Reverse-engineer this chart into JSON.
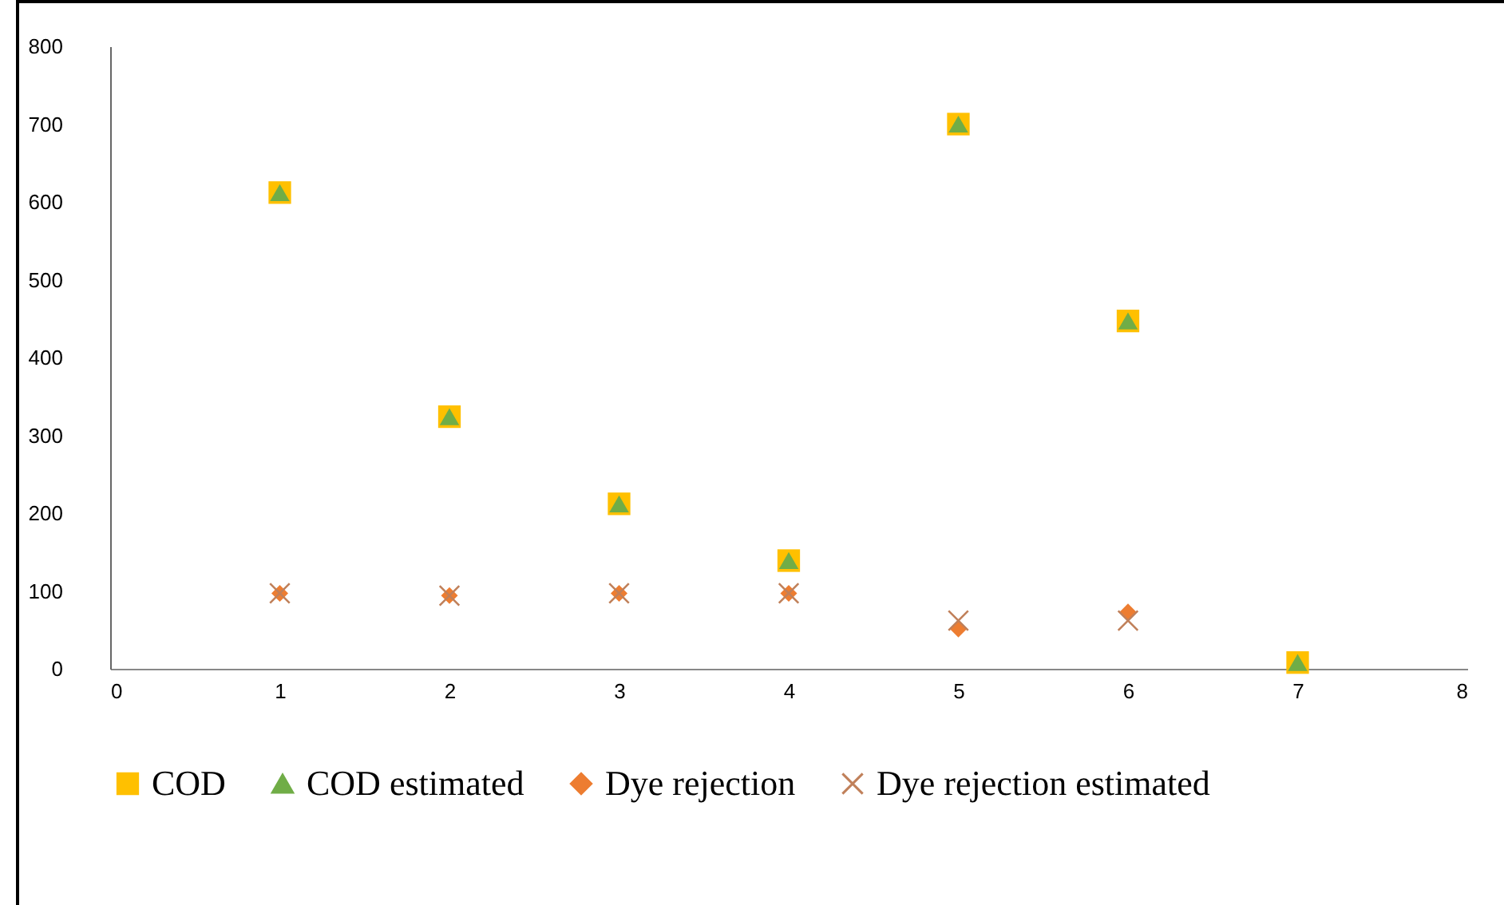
{
  "chart_data": {
    "type": "scatter",
    "x": [
      1,
      2,
      3,
      4,
      5,
      6,
      7
    ],
    "series": [
      {
        "name": "COD",
        "color": "#ffc000",
        "marker": "square",
        "values": [
          612,
          324,
          212,
          139,
          700,
          447,
          8
        ]
      },
      {
        "name": "COD estimated",
        "color": "#70ad47",
        "marker": "triangle",
        "values": [
          612,
          324,
          212,
          139,
          700,
          447,
          8
        ]
      },
      {
        "name": "Dye rejection",
        "color": "#ed7d31",
        "marker": "diamond",
        "values": [
          97,
          94,
          97,
          97,
          51,
          73,
          null
        ]
      },
      {
        "name": "Dye rejection estimated",
        "color": "#c0805a",
        "marker": "cross",
        "values": [
          97,
          94,
          97,
          97,
          62,
          62,
          null
        ]
      }
    ],
    "xlim": [
      0,
      8
    ],
    "xticks": [
      0,
      1,
      2,
      3,
      4,
      5,
      6,
      7,
      8
    ],
    "ylim": [
      0,
      800
    ],
    "yticks": [
      0,
      100,
      200,
      300,
      400,
      500,
      600,
      700,
      800
    ],
    "grid": false,
    "legend": "bottom"
  }
}
